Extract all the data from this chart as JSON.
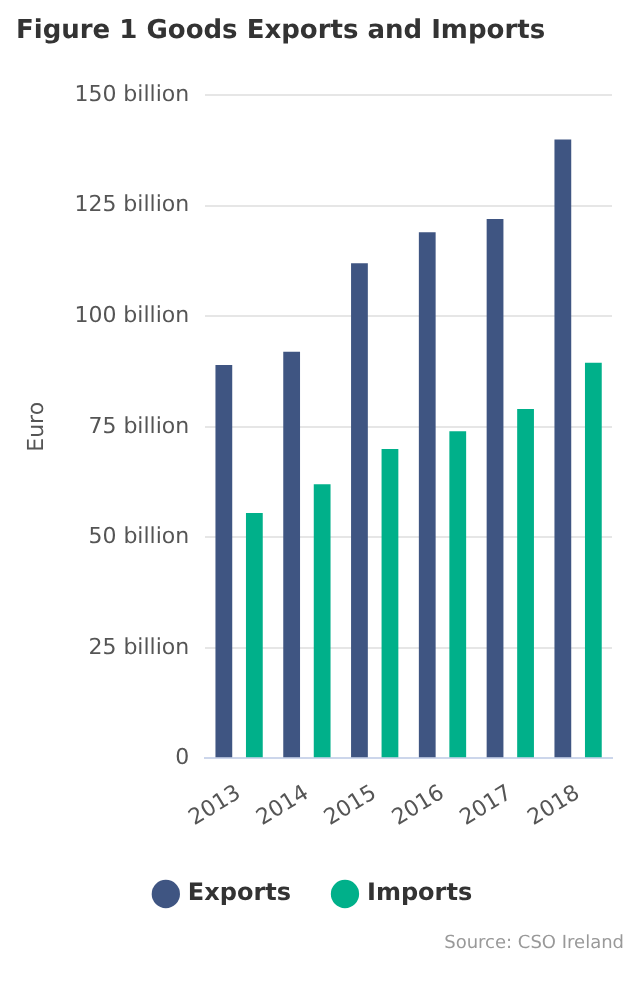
{
  "chart_data": {
    "type": "bar",
    "title": "Figure 1 Goods Exports and Imports",
    "ylabel": "Euro",
    "categories": [
      "2013",
      "2014",
      "2015",
      "2016",
      "2017",
      "2018"
    ],
    "series": [
      {
        "name": "Exports",
        "color": "#3f5582",
        "values": [
          89,
          92,
          112,
          119,
          122,
          140
        ]
      },
      {
        "name": "Imports",
        "color": "#00b08a",
        "values": [
          55.5,
          62,
          70,
          74,
          79,
          89.5
        ]
      }
    ],
    "ylim": [
      0,
      150
    ],
    "yticks": [
      0,
      {
        "value": 25,
        "label": "25 billion"
      },
      {
        "value": 50,
        "label": "50 billion"
      },
      {
        "value": 75,
        "label": "75 billion"
      },
      {
        "value": 100,
        "label": "100 billion"
      },
      {
        "value": 125,
        "label": "125 billion"
      },
      {
        "value": 150,
        "label": "150 billion"
      }
    ],
    "grid": "y",
    "legend": "bottom",
    "annotations": [
      "Source: CSO Ireland"
    ]
  }
}
